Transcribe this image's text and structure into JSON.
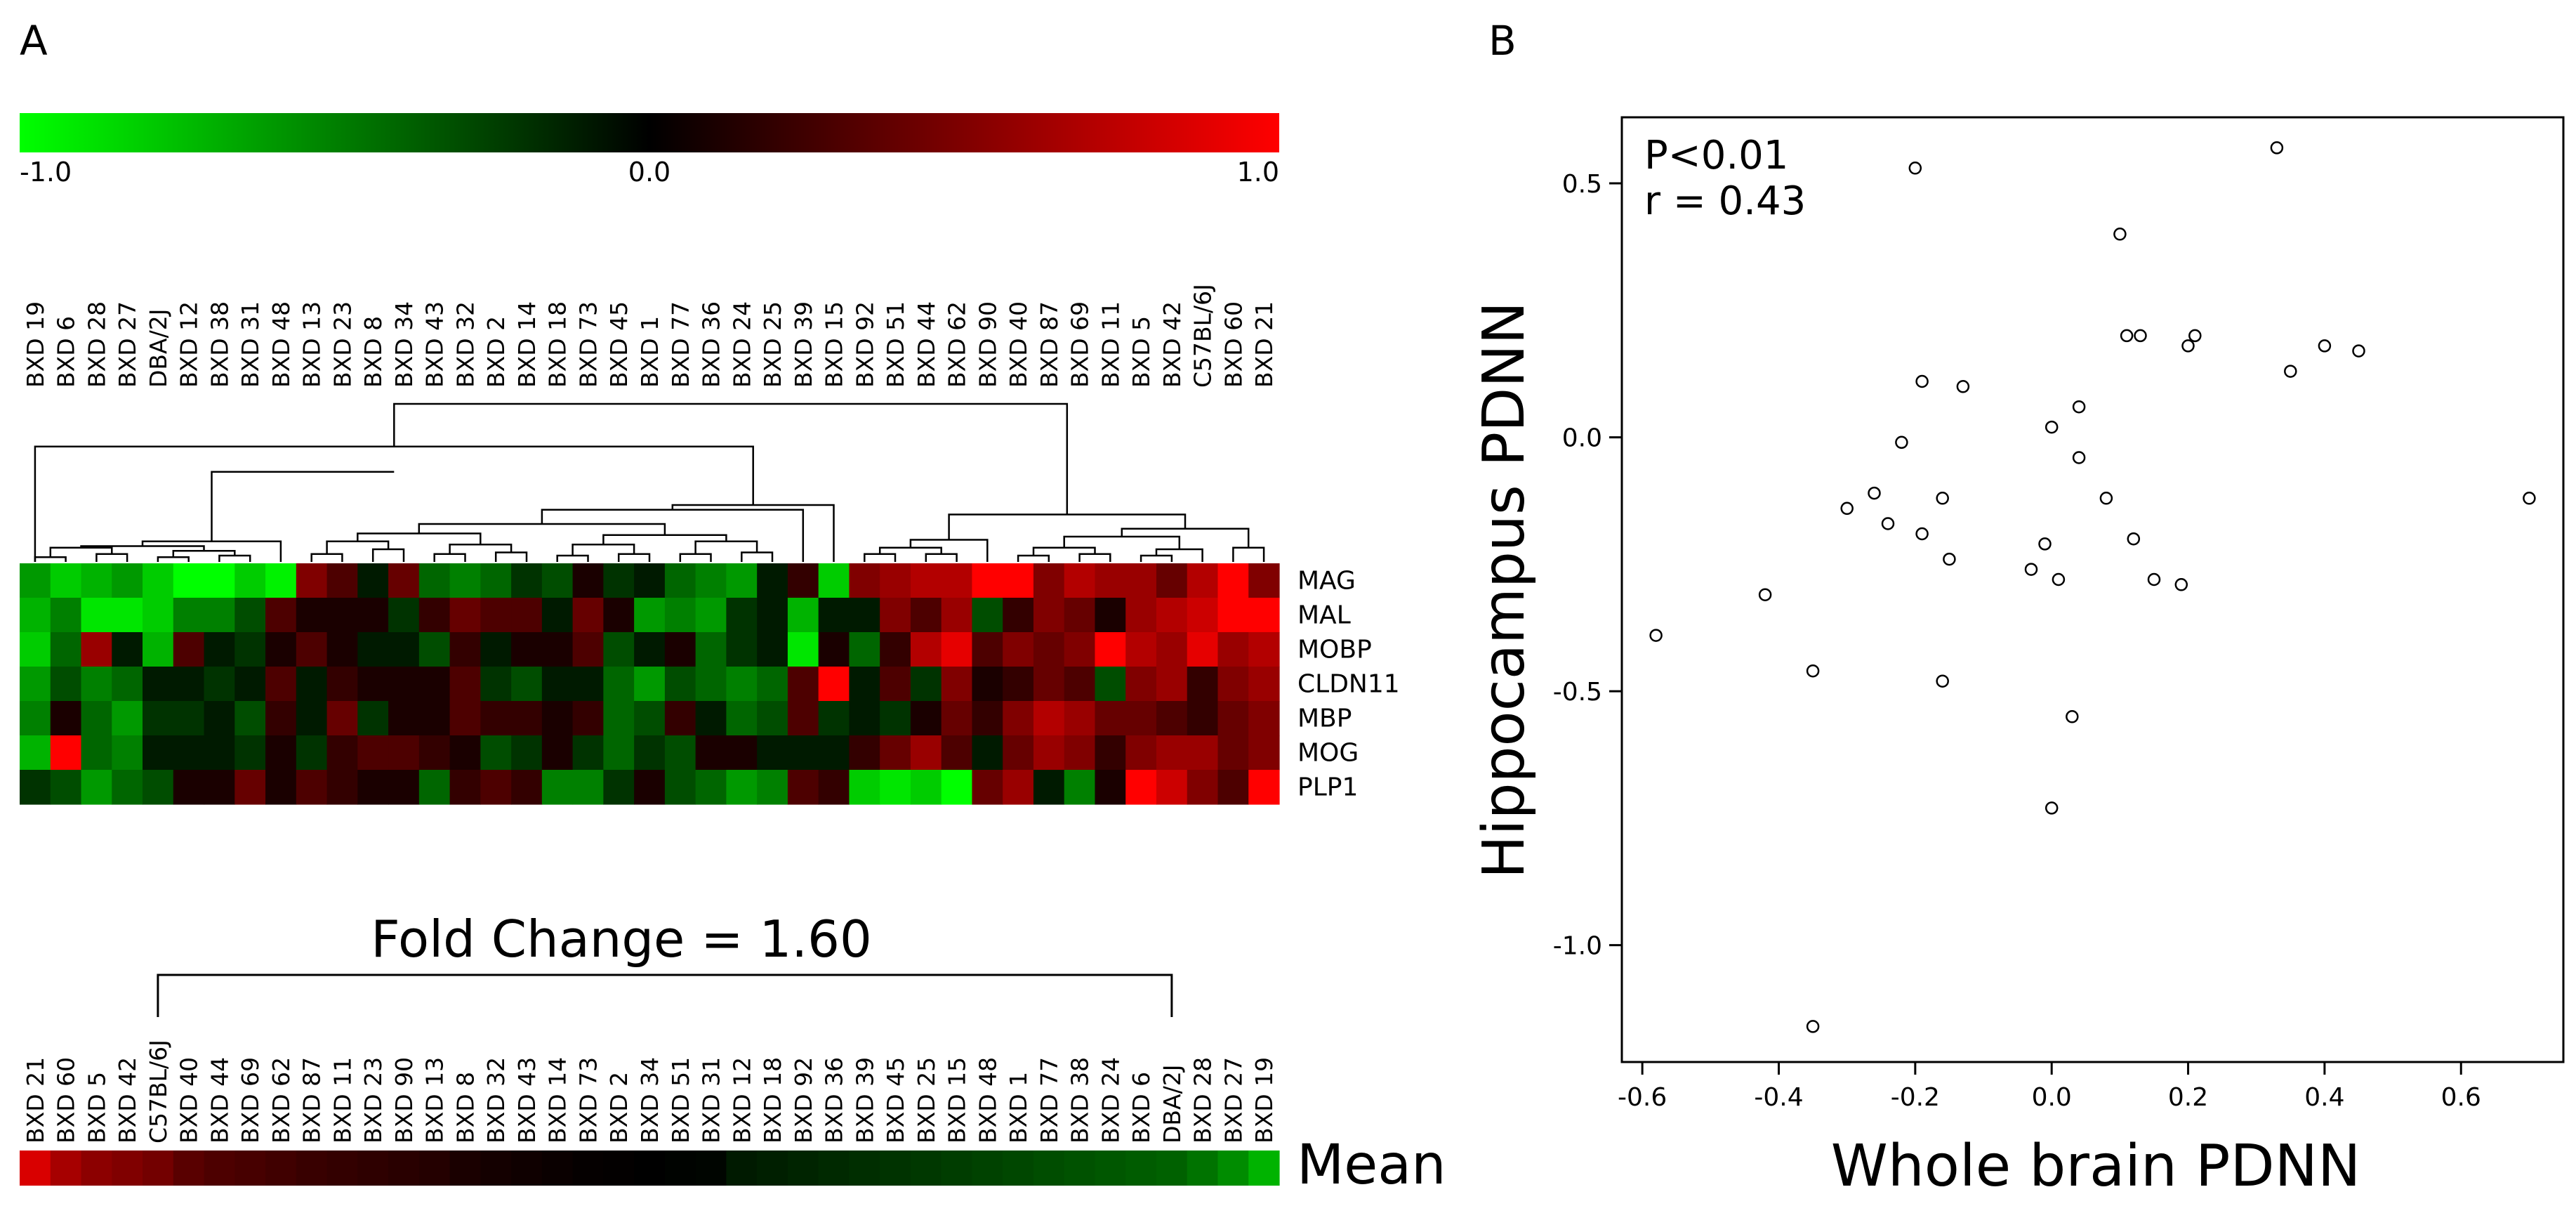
{
  "panels": {
    "a_label": "A",
    "b_label": "B"
  },
  "colors": {
    "low": "#00ff00",
    "mid": "#000000",
    "high": "#ff0000",
    "axis": "#000000",
    "point_fill": "#ffffff"
  },
  "chart_data": [
    {
      "type": "heatmap",
      "title": "",
      "colorbar": {
        "min": -1.0,
        "max": 1.0,
        "tick_labels": [
          "-1.0",
          "0.0",
          "1.0"
        ]
      },
      "genes": [
        "MAG",
        "MAL",
        "MOBP",
        "CLDN11",
        "MBP",
        "MOG",
        "PLP1"
      ],
      "strains": [
        "BXD 19",
        "BXD 6",
        "BXD 28",
        "BXD 27",
        "DBA/2J",
        "BXD 12",
        "BXD 38",
        "BXD 31",
        "BXD 48",
        "BXD 13",
        "BXD 23",
        "BXD 8",
        "BXD 34",
        "BXD 43",
        "BXD 32",
        "BXD 2",
        "BXD 14",
        "BXD 18",
        "BXD 73",
        "BXD 45",
        "BXD 1",
        "BXD 77",
        "BXD 36",
        "BXD 24",
        "BXD 25",
        "BXD 39",
        "BXD 15",
        "BXD 92",
        "BXD 51",
        "BXD 44",
        "BXD 62",
        "BXD 90",
        "BXD 40",
        "BXD 87",
        "BXD 69",
        "BXD 11",
        "BXD 5",
        "BXD 42",
        "C57BL/6J",
        "BXD 60",
        "BXD 21"
      ],
      "values": [
        [
          -0.6,
          -0.8,
          -0.7,
          -0.6,
          -0.8,
          -1.0,
          -1.0,
          -0.8,
          -0.95,
          0.5,
          0.3,
          -0.1,
          0.4,
          -0.4,
          -0.5,
          -0.4,
          -0.2,
          -0.3,
          0.1,
          -0.2,
          -0.1,
          -0.4,
          -0.5,
          -0.6,
          -0.1,
          0.2,
          -0.8,
          0.5,
          0.6,
          0.7,
          0.7,
          1.0,
          1.0,
          0.5,
          0.7,
          0.6,
          0.6,
          0.4,
          0.7,
          1.0,
          0.5
        ],
        [
          -0.7,
          -0.5,
          -0.9,
          -0.9,
          -0.8,
          -0.5,
          -0.5,
          -0.3,
          0.3,
          0.1,
          0.1,
          0.1,
          -0.2,
          0.2,
          0.4,
          0.3,
          0.3,
          -0.1,
          0.4,
          0.1,
          -0.6,
          -0.5,
          -0.6,
          -0.2,
          -0.1,
          -0.7,
          -0.1,
          -0.1,
          0.5,
          0.3,
          0.6,
          -0.3,
          0.2,
          0.5,
          0.4,
          0.1,
          0.6,
          0.7,
          0.8,
          1.0,
          1.0
        ],
        [
          -0.8,
          -0.4,
          0.6,
          -0.1,
          -0.7,
          0.3,
          -0.1,
          -0.2,
          0.1,
          0.3,
          0.1,
          -0.1,
          -0.1,
          -0.3,
          0.2,
          -0.1,
          0.1,
          0.1,
          0.3,
          -0.3,
          -0.1,
          0.1,
          -0.4,
          -0.2,
          -0.1,
          -0.9,
          0.1,
          -0.4,
          0.2,
          0.7,
          0.9,
          0.3,
          0.5,
          0.4,
          0.5,
          1.0,
          0.7,
          0.6,
          0.9,
          0.6,
          0.7
        ],
        [
          -0.6,
          -0.3,
          -0.5,
          -0.4,
          -0.1,
          -0.1,
          -0.2,
          -0.1,
          0.3,
          -0.1,
          0.2,
          0.1,
          0.1,
          0.1,
          0.3,
          -0.2,
          -0.3,
          -0.1,
          -0.1,
          -0.4,
          -0.6,
          -0.3,
          -0.4,
          -0.5,
          -0.4,
          0.3,
          1.0,
          -0.1,
          0.3,
          -0.2,
          0.5,
          0.1,
          0.2,
          0.4,
          0.3,
          -0.3,
          0.5,
          0.6,
          0.2,
          0.5,
          0.6
        ],
        [
          -0.5,
          0.1,
          -0.4,
          -0.6,
          -0.2,
          -0.2,
          -0.1,
          -0.3,
          0.2,
          -0.1,
          0.4,
          -0.2,
          0.1,
          0.1,
          0.3,
          0.2,
          0.2,
          0.1,
          0.2,
          -0.4,
          -0.3,
          0.2,
          -0.1,
          -0.4,
          -0.3,
          0.3,
          -0.2,
          -0.1,
          -0.2,
          0.1,
          0.4,
          0.2,
          0.5,
          0.7,
          0.6,
          0.4,
          0.4,
          0.3,
          0.2,
          0.4,
          0.5
        ],
        [
          -0.7,
          1.0,
          -0.4,
          -0.5,
          -0.1,
          -0.1,
          -0.1,
          -0.2,
          0.1,
          -0.2,
          0.2,
          0.3,
          0.3,
          0.2,
          0.1,
          -0.3,
          -0.2,
          0.1,
          -0.2,
          -0.4,
          -0.2,
          -0.3,
          0.1,
          0.1,
          -0.1,
          -0.1,
          -0.1,
          0.2,
          0.4,
          0.6,
          0.3,
          -0.1,
          0.4,
          0.6,
          0.5,
          0.2,
          0.5,
          0.6,
          0.6,
          0.4,
          0.5
        ],
        [
          -0.2,
          -0.3,
          -0.6,
          -0.4,
          -0.3,
          0.1,
          0.1,
          0.4,
          0.1,
          0.3,
          0.2,
          0.1,
          0.1,
          -0.4,
          0.2,
          0.3,
          0.2,
          -0.5,
          -0.5,
          -0.2,
          0.1,
          -0.3,
          -0.4,
          -0.6,
          -0.5,
          0.3,
          0.2,
          -0.8,
          -0.9,
          -0.8,
          -1.0,
          0.4,
          0.6,
          -0.1,
          -0.5,
          0.1,
          1.0,
          0.8,
          0.5,
          0.3,
          1.0
        ]
      ]
    },
    {
      "type": "heatmap",
      "title": "Fold Change = 1.60",
      "row_label": "Mean",
      "bracket_from": "C57BL/6J",
      "bracket_to": "DBA/2J",
      "strains": [
        "BXD 21",
        "BXD 60",
        "BXD 5",
        "BXD 42",
        "C57BL/6J",
        "BXD 40",
        "BXD 44",
        "BXD 69",
        "BXD 62",
        "BXD 87",
        "BXD 11",
        "BXD 23",
        "BXD 90",
        "BXD 13",
        "BXD 8",
        "BXD 32",
        "BXD 43",
        "BXD 14",
        "BXD 73",
        "BXD 2",
        "BXD 34",
        "BXD 51",
        "BXD 31",
        "BXD 12",
        "BXD 18",
        "BXD 92",
        "BXD 36",
        "BXD 39",
        "BXD 45",
        "BXD 25",
        "BXD 15",
        "BXD 48",
        "BXD 1",
        "BXD 77",
        "BXD 38",
        "BXD 24",
        "BXD 6",
        "DBA/2J",
        "BXD 28",
        "BXD 27",
        "BXD 19"
      ],
      "values": [
        0.85,
        0.65,
        0.55,
        0.5,
        0.45,
        0.35,
        0.3,
        0.28,
        0.25,
        0.22,
        0.2,
        0.18,
        0.16,
        0.14,
        0.1,
        0.08,
        0.06,
        0.04,
        0.02,
        0.01,
        0.0,
        -0.01,
        -0.02,
        -0.1,
        -0.12,
        -0.14,
        -0.16,
        -0.18,
        -0.2,
        -0.22,
        -0.24,
        -0.26,
        -0.28,
        -0.3,
        -0.32,
        -0.34,
        -0.36,
        -0.38,
        -0.45,
        -0.55,
        -0.7
      ]
    },
    {
      "type": "scatter",
      "title": "",
      "annotations": [
        "P<0.01",
        "r = 0.43"
      ],
      "xlabel": "Whole brain PDNN",
      "ylabel": "Hippocampus PDNN",
      "xlim": [
        -0.63,
        0.75
      ],
      "ylim": [
        -1.23,
        0.63
      ],
      "xticks": [
        -0.6,
        -0.4,
        -0.2,
        0.0,
        0.2,
        0.4,
        0.6
      ],
      "xtick_labels": [
        "-0.6",
        "-0.4",
        "-0.2",
        "0.0",
        "0.2",
        "0.4",
        "0.6"
      ],
      "yticks": [
        -1.0,
        -0.5,
        0.0,
        0.5
      ],
      "ytick_labels": [
        "-1.0",
        "-0.5",
        "0.0",
        "0.5"
      ],
      "points": [
        [
          -0.58,
          -0.39
        ],
        [
          -0.42,
          -0.31
        ],
        [
          -0.35,
          -0.46
        ],
        [
          -0.35,
          -1.16
        ],
        [
          -0.3,
          -0.14
        ],
        [
          -0.26,
          -0.11
        ],
        [
          -0.24,
          -0.17
        ],
        [
          -0.22,
          -0.01
        ],
        [
          -0.2,
          0.53
        ],
        [
          -0.19,
          0.11
        ],
        [
          -0.19,
          -0.19
        ],
        [
          -0.16,
          -0.12
        ],
        [
          -0.16,
          -0.48
        ],
        [
          -0.15,
          -0.24
        ],
        [
          -0.13,
          0.1
        ],
        [
          -0.03,
          -0.26
        ],
        [
          -0.01,
          -0.21
        ],
        [
          0.0,
          0.02
        ],
        [
          0.0,
          -0.73
        ],
        [
          0.01,
          -0.28
        ],
        [
          0.03,
          -0.55
        ],
        [
          0.04,
          0.06
        ],
        [
          0.04,
          -0.04
        ],
        [
          0.08,
          -0.12
        ],
        [
          0.1,
          0.4
        ],
        [
          0.11,
          0.2
        ],
        [
          0.12,
          -0.2
        ],
        [
          0.13,
          0.2
        ],
        [
          0.15,
          -0.28
        ],
        [
          0.19,
          -0.29
        ],
        [
          0.2,
          0.18
        ],
        [
          0.21,
          0.2
        ],
        [
          0.33,
          0.57
        ],
        [
          0.35,
          0.13
        ],
        [
          0.4,
          0.18
        ],
        [
          0.45,
          0.17
        ],
        [
          0.7,
          -0.12
        ]
      ]
    }
  ]
}
